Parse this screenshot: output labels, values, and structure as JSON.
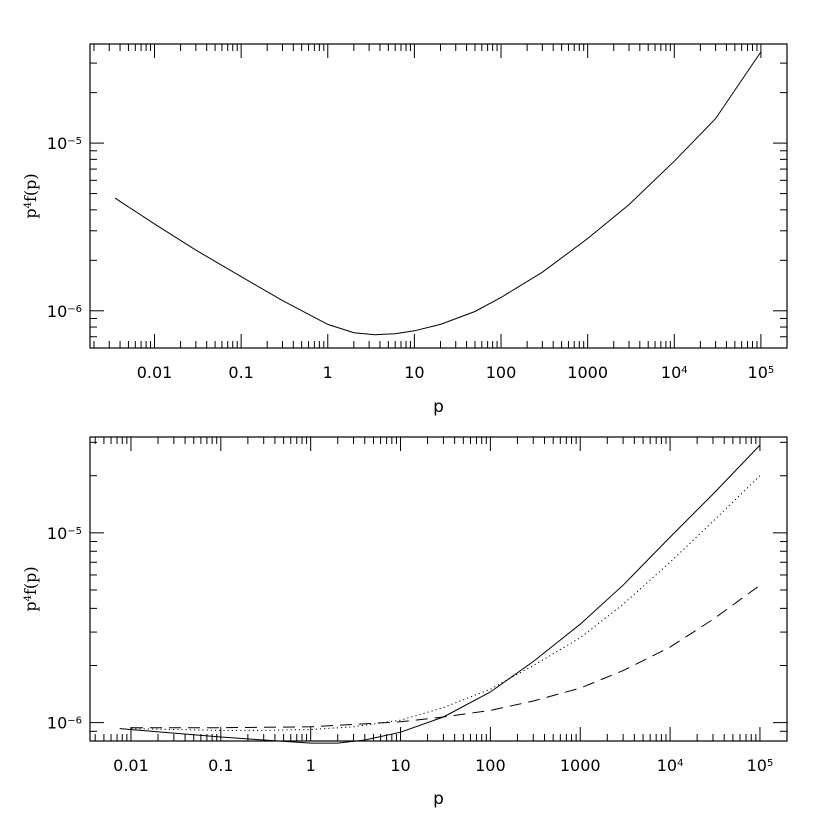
{
  "chart_data": [
    {
      "type": "line",
      "xscale": "log",
      "yscale": "log",
      "xlim": [
        0.0018,
        200000
      ],
      "ylim": [
        6e-07,
        3.9e-05
      ],
      "xlabel": "p",
      "ylabel": {
        "base": "p",
        "exp": "4",
        "rest": "f(p)"
      },
      "x_ticklabels": [
        {
          "v": 0.01,
          "base": "0.01",
          "exp": ""
        },
        {
          "v": 0.1,
          "base": "0.1",
          "exp": ""
        },
        {
          "v": 1,
          "base": "1",
          "exp": ""
        },
        {
          "v": 10,
          "base": "10",
          "exp": ""
        },
        {
          "v": 100,
          "base": "100",
          "exp": ""
        },
        {
          "v": 1000,
          "base": "1000",
          "exp": ""
        },
        {
          "v": 10000,
          "base": "10",
          "exp": "4"
        },
        {
          "v": 100000,
          "base": "10",
          "exp": "5"
        }
      ],
      "y_ticklabels": [
        {
          "v": 1e-06,
          "base": "10",
          "exp": "−6"
        },
        {
          "v": 1e-05,
          "base": "10",
          "exp": "−5"
        }
      ],
      "series": [
        {
          "style": "solid",
          "x": [
            0.0035,
            0.01,
            0.03,
            0.1,
            0.3,
            1,
            2,
            3.5,
            6,
            10,
            20,
            50,
            100,
            300,
            1000,
            3000,
            10000,
            30000,
            100000
          ],
          "y": [
            4.7e-06,
            3.3e-06,
            2.3e-06,
            1.6e-06,
            1.15e-06,
            8.3e-07,
            7.4e-07,
            7.2e-07,
            7.3e-07,
            7.6e-07,
            8.3e-07,
            9.9e-07,
            1.2e-06,
            1.7e-06,
            2.7e-06,
            4.3e-06,
            7.8e-06,
            1.4e-05,
            3.5e-05
          ]
        }
      ]
    },
    {
      "type": "line",
      "xscale": "log",
      "yscale": "log",
      "xlim": [
        0.0035,
        200000
      ],
      "ylim": [
        8e-07,
        3.2e-05
      ],
      "xlabel": "p",
      "ylabel": {
        "base": "p",
        "exp": "4",
        "rest": "f(p)"
      },
      "x_ticklabels": [
        {
          "v": 0.01,
          "base": "0.01",
          "exp": ""
        },
        {
          "v": 0.1,
          "base": "0.1",
          "exp": ""
        },
        {
          "v": 1,
          "base": "1",
          "exp": ""
        },
        {
          "v": 10,
          "base": "10",
          "exp": ""
        },
        {
          "v": 100,
          "base": "100",
          "exp": ""
        },
        {
          "v": 1000,
          "base": "1000",
          "exp": ""
        },
        {
          "v": 10000,
          "base": "10",
          "exp": "4"
        },
        {
          "v": 100000,
          "base": "10",
          "exp": "5"
        }
      ],
      "y_ticklabels": [
        {
          "v": 1e-06,
          "base": "10",
          "exp": "−6"
        },
        {
          "v": 1e-05,
          "base": "10",
          "exp": "−5"
        }
      ],
      "series": [
        {
          "style": "solid",
          "x": [
            0.0075,
            0.03,
            0.1,
            0.3,
            1,
            2,
            4,
            10,
            30,
            100,
            300,
            1000,
            3000,
            10000,
            30000,
            100000
          ],
          "y": [
            9.3e-07,
            8.8e-07,
            8.4e-07,
            8.1e-07,
            7.8e-07,
            7.8e-07,
            8.1e-07,
            8.9e-07,
            1.07e-06,
            1.45e-06,
            2.1e-06,
            3.3e-06,
            5.3e-06,
            9.5e-06,
            1.6e-05,
            2.9e-05
          ]
        },
        {
          "style": "dotted",
          "x": [
            0.01,
            0.03,
            0.1,
            0.3,
            1,
            3,
            10,
            30,
            100,
            300,
            1000,
            3000,
            10000,
            30000,
            100000
          ],
          "y": [
            9.3e-07,
            9.2e-07,
            9.1e-07,
            9.1e-07,
            9.2e-07,
            9.5e-07,
            1.03e-06,
            1.2e-06,
            1.5e-06,
            2e-06,
            2.8e-06,
            4.2e-06,
            7e-06,
            1.15e-05,
            2e-05
          ]
        },
        {
          "style": "dashed",
          "x": [
            0.01,
            0.1,
            1,
            10,
            30,
            100,
            300,
            1000,
            3000,
            10000,
            30000,
            100000
          ],
          "y": [
            9.4e-07,
            9.4e-07,
            9.5e-07,
            1.01e-06,
            1.07e-06,
            1.16e-06,
            1.3e-06,
            1.52e-06,
            1.88e-06,
            2.5e-06,
            3.5e-06,
            5.3e-06
          ]
        }
      ]
    }
  ]
}
